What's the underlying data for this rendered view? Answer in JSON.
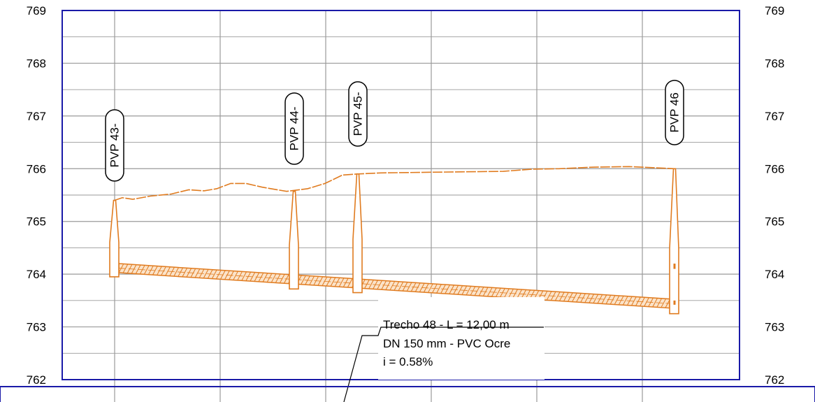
{
  "chart_data": {
    "type": "line",
    "title": "",
    "xlabel": "",
    "ylabel": "",
    "ylim": [
      762,
      769
    ],
    "y_ticks": [
      769,
      768,
      767,
      766,
      765,
      764,
      763,
      762
    ],
    "grid": true,
    "colors": {
      "frame": "#1a1aa8",
      "grid": "#9a9a9a",
      "profile": "#e07b1f",
      "text": "#000000"
    },
    "manholes": [
      {
        "label": "PVP 43-",
        "terrain": 765.4,
        "invert": 763.95
      },
      {
        "label": "PVP 44-",
        "terrain": 765.57,
        "invert": 763.72
      },
      {
        "label": "PVP 45-",
        "terrain": 765.9,
        "invert": 763.65
      },
      {
        "label": "PVP 46",
        "terrain": 766.0,
        "invert": 763.25
      }
    ],
    "terrain_series": {
      "name": "",
      "y": [
        765.4,
        765.45,
        765.42,
        765.48,
        765.52,
        765.6,
        765.58,
        765.62,
        765.72,
        765.72,
        765.65,
        765.57,
        765.62,
        765.72,
        765.88,
        765.9,
        765.92,
        765.93,
        765.94,
        765.95,
        765.99,
        766.0,
        766.03,
        766.04,
        766.0
      ]
    },
    "pipe_series": {
      "name": "",
      "y": [
        764.2,
        763.53
      ]
    },
    "annotation": {
      "lines": [
        "Trecho 48 - L = 12,00 m",
        "DN 150 mm - PVC Ocre",
        "i = 0.58%"
      ]
    }
  }
}
